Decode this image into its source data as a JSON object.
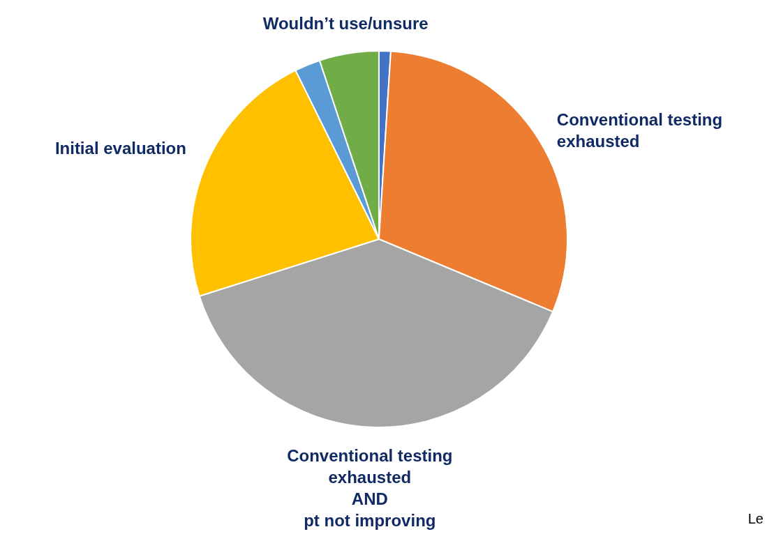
{
  "chart_data": {
    "type": "pie",
    "categories": [
      null,
      "Conventional testing\nexhausted",
      "Conventional testing\nexhausted\nAND\npt not improving",
      "Initial evaluation",
      null,
      "Wouldn’t use/unsure"
    ],
    "values": [
      1,
      30.3,
      38.8,
      22.6,
      2.2,
      5.1
    ],
    "colors": [
      "#4472c4",
      "#ed7d31",
      "#a5a5a5",
      "#ffc000",
      "#5b9bd5",
      "#70ad47"
    ],
    "annotations": [
      "Le"
    ]
  }
}
